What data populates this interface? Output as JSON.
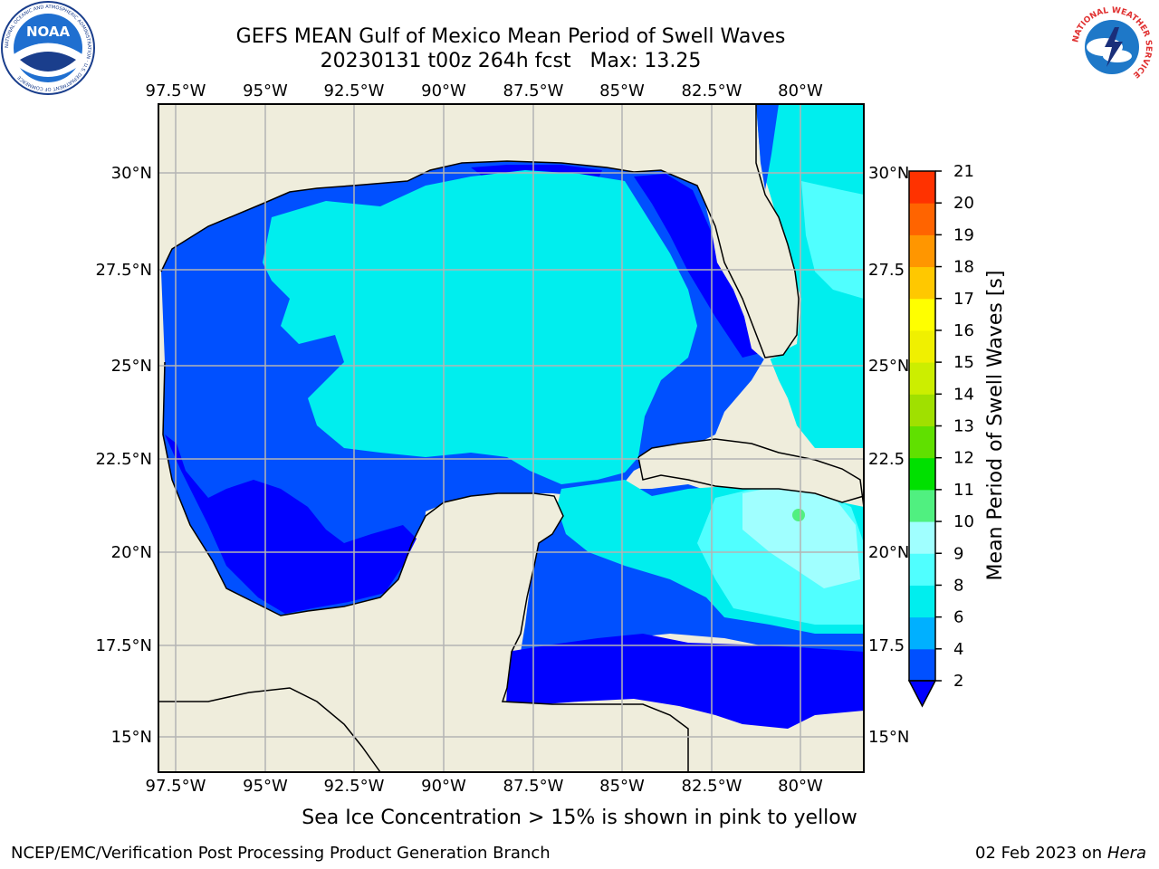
{
  "header": {
    "title": "GEFS MEAN Gulf of Mexico Mean Period of Swell Waves",
    "subtitle": "20230131 t00z 264h fcst   Max: 13.25"
  },
  "map": {
    "lon_ticks": [
      "97.5°W",
      "95°W",
      "92.5°W",
      "90°W",
      "87.5°W",
      "85°W",
      "82.5°W",
      "80°W"
    ],
    "lat_ticks_left": [
      "30°N",
      "27.5°N",
      "25°N",
      "22.5°N",
      "20°N",
      "17.5°N",
      "15°N"
    ],
    "lat_ticks_right": [
      "30°N",
      "27.5",
      "25°N",
      "22.5",
      "20°N",
      "17.5",
      "15°N"
    ],
    "colors": {
      "land": "#efeddc",
      "grid": "#b4b4b4"
    }
  },
  "colorbar": {
    "label": "Mean Period of Swell Waves [s]",
    "levels": [
      "2",
      "4",
      "6",
      "8",
      "9",
      "10",
      "11",
      "12",
      "13",
      "14",
      "15",
      "16",
      "17",
      "18",
      "19",
      "20",
      "21"
    ],
    "colors": [
      "#0050ff",
      "#00b0ff",
      "#00eeee",
      "#50ffff",
      "#a0ffff",
      "#50f080",
      "#00e000",
      "#60e000",
      "#a0e000",
      "#ccee00",
      "#f0f000",
      "#ffff00",
      "#ffc800",
      "#ff9600",
      "#ff6400",
      "#ff3200"
    ],
    "under_color": "#0000ff"
  },
  "footer": {
    "note": "Sea Ice Concentration > 15% is shown in pink to yellow",
    "credit": "NCEP/EMC/Verification Post Processing Product Generation Branch",
    "date": "02 Feb 2023 on",
    "host": "Hera"
  },
  "logos": {
    "noaa_text": "NOAA",
    "noaa_ring_text": "NATIONAL OCEANIC AND ATMOSPHERIC ADMINISTRATION · U.S. DEPARTMENT OF COMMERCE",
    "nws_ring_text": "NATIONAL WEATHER SERVICE"
  }
}
